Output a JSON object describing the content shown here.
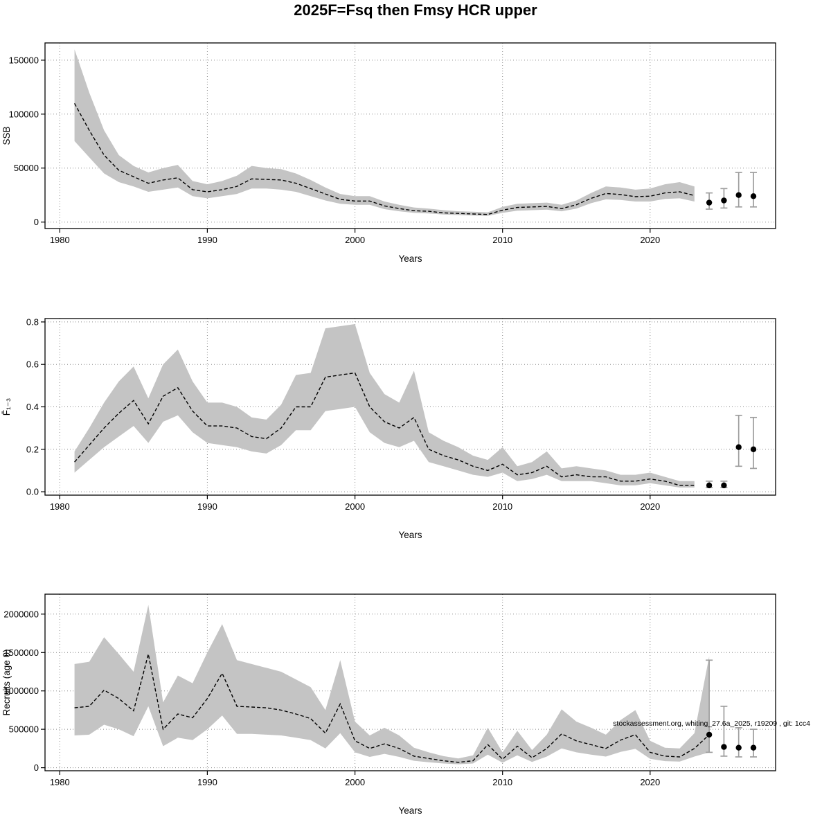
{
  "page": {
    "title": "2025F=Fsq then Fmsy HCR upper",
    "watermark": "stockassessment.org, whiting_27.6a_2025, r19209 , git: 1cc4"
  },
  "colors": {
    "band": "#c4c4c4",
    "line": "#000000",
    "errorbar": "#9e9e9e",
    "dot": "#000000",
    "grid": "#8a8a8a"
  },
  "chart_data": [
    {
      "type": "area",
      "name": "ssb-panel",
      "title": "",
      "xlabel": "Years",
      "ylabel": "SSB",
      "xlim": [
        1979,
        2028.5
      ],
      "ylim": [
        -6000,
        166000
      ],
      "xticks": [
        1980,
        1990,
        2000,
        2010,
        2020
      ],
      "xtick_labels": [
        "1980",
        "1990",
        "2000",
        "2010",
        "2020"
      ],
      "yticks": [
        0,
        50000,
        100000,
        150000
      ],
      "ytick_labels": [
        "0",
        "50000",
        "100000",
        "150000"
      ],
      "years": [
        1981,
        1982,
        1983,
        1984,
        1985,
        1986,
        1987,
        1988,
        1989,
        1990,
        1991,
        1992,
        1993,
        1994,
        1995,
        1996,
        1997,
        1998,
        1999,
        2000,
        2001,
        2002,
        2003,
        2004,
        2005,
        2006,
        2007,
        2008,
        2009,
        2010,
        2011,
        2012,
        2013,
        2014,
        2015,
        2016,
        2017,
        2018,
        2019,
        2020,
        2021,
        2022,
        2023
      ],
      "median": [
        110000,
        85000,
        62000,
        48000,
        42000,
        36000,
        39000,
        41000,
        30000,
        28000,
        30000,
        33000,
        40000,
        39500,
        39000,
        36000,
        31000,
        26000,
        21000,
        19500,
        19500,
        15000,
        12500,
        10500,
        10000,
        8500,
        8000,
        7500,
        7000,
        11000,
        13500,
        14000,
        14500,
        12500,
        16000,
        22000,
        26500,
        25500,
        23500,
        24000,
        27000,
        28000,
        24500
      ],
      "upper": [
        160000,
        120000,
        85000,
        62000,
        52000,
        46000,
        50000,
        53000,
        38000,
        35000,
        38000,
        43000,
        52000,
        50000,
        49000,
        45000,
        39000,
        32000,
        26000,
        24000,
        24000,
        19000,
        16000,
        13500,
        12500,
        11000,
        10000,
        9500,
        9000,
        14000,
        17000,
        17500,
        18000,
        16000,
        20000,
        27000,
        33000,
        32000,
        30000,
        31000,
        35000,
        37000,
        33000
      ],
      "lower": [
        75000,
        60000,
        45000,
        37000,
        33000,
        28000,
        30000,
        32000,
        24000,
        22000,
        24000,
        26000,
        31000,
        31000,
        30000,
        28000,
        24000,
        20000,
        17000,
        16000,
        16000,
        12000,
        10000,
        8500,
        8000,
        7000,
        6500,
        6000,
        5800,
        8500,
        10500,
        11000,
        11500,
        10000,
        12500,
        17500,
        21000,
        20500,
        19000,
        19000,
        21500,
        22000,
        19000
      ],
      "forecast": {
        "years": [
          2024,
          2025,
          2026,
          2027
        ],
        "values": [
          18000,
          20000,
          25000,
          24000
        ],
        "lo": [
          12000,
          13000,
          14000,
          14000
        ],
        "hi": [
          27000,
          31000,
          46000,
          46000
        ]
      }
    },
    {
      "type": "area",
      "name": "fbar-panel",
      "title": "",
      "xlabel": "Years",
      "ylabel": "F̄₁₋₃",
      "xlim": [
        1979,
        2028.5
      ],
      "ylim": [
        -0.016,
        0.816
      ],
      "xticks": [
        1980,
        1990,
        2000,
        2010,
        2020
      ],
      "xtick_labels": [
        "1980",
        "1990",
        "2000",
        "2010",
        "2020"
      ],
      "yticks": [
        0,
        0.2,
        0.4,
        0.6,
        0.8
      ],
      "ytick_labels": [
        "0.0",
        "0.2",
        "0.4",
        "0.6",
        "0.8"
      ],
      "years": [
        1981,
        1982,
        1983,
        1984,
        1985,
        1986,
        1987,
        1988,
        1989,
        1990,
        1991,
        1992,
        1993,
        1994,
        1995,
        1996,
        1997,
        1998,
        1999,
        2000,
        2001,
        2002,
        2003,
        2004,
        2005,
        2006,
        2007,
        2008,
        2009,
        2010,
        2011,
        2012,
        2013,
        2014,
        2015,
        2016,
        2017,
        2018,
        2019,
        2020,
        2021,
        2022,
        2023
      ],
      "median": [
        0.14,
        0.22,
        0.3,
        0.37,
        0.43,
        0.32,
        0.45,
        0.49,
        0.38,
        0.31,
        0.31,
        0.3,
        0.26,
        0.25,
        0.3,
        0.4,
        0.4,
        0.54,
        0.55,
        0.56,
        0.4,
        0.33,
        0.3,
        0.35,
        0.2,
        0.17,
        0.15,
        0.12,
        0.1,
        0.13,
        0.08,
        0.09,
        0.12,
        0.07,
        0.08,
        0.07,
        0.07,
        0.05,
        0.05,
        0.06,
        0.05,
        0.03,
        0.03
      ],
      "upper": [
        0.19,
        0.3,
        0.42,
        0.52,
        0.59,
        0.44,
        0.6,
        0.67,
        0.52,
        0.42,
        0.42,
        0.4,
        0.35,
        0.34,
        0.41,
        0.55,
        0.56,
        0.77,
        0.78,
        0.79,
        0.56,
        0.46,
        0.42,
        0.57,
        0.28,
        0.24,
        0.21,
        0.17,
        0.15,
        0.21,
        0.12,
        0.14,
        0.19,
        0.11,
        0.12,
        0.11,
        0.1,
        0.08,
        0.08,
        0.09,
        0.07,
        0.05,
        0.05
      ],
      "lower": [
        0.09,
        0.15,
        0.21,
        0.26,
        0.31,
        0.23,
        0.33,
        0.36,
        0.28,
        0.23,
        0.22,
        0.21,
        0.19,
        0.18,
        0.22,
        0.29,
        0.29,
        0.38,
        0.39,
        0.4,
        0.28,
        0.23,
        0.21,
        0.24,
        0.14,
        0.12,
        0.1,
        0.08,
        0.07,
        0.09,
        0.05,
        0.06,
        0.08,
        0.05,
        0.05,
        0.05,
        0.04,
        0.03,
        0.03,
        0.04,
        0.03,
        0.02,
        0.02
      ],
      "forecast": {
        "years": [
          2024,
          2025,
          2026,
          2027
        ],
        "values": [
          0.03,
          0.03,
          0.21,
          0.2
        ],
        "lo": [
          0.02,
          0.02,
          0.12,
          0.11
        ],
        "hi": [
          0.05,
          0.05,
          0.36,
          0.35
        ]
      }
    },
    {
      "type": "area",
      "name": "recruits-panel",
      "title": "",
      "xlabel": "Years",
      "ylabel": "Recruits (age 0)",
      "xlim": [
        1979,
        2028.5
      ],
      "ylim": [
        -40000,
        2260000
      ],
      "xticks": [
        1980,
        1990,
        2000,
        2010,
        2020
      ],
      "xtick_labels": [
        "1980",
        "1990",
        "2000",
        "2010",
        "2020"
      ],
      "yticks": [
        0,
        500000,
        1000000,
        1500000,
        2000000
      ],
      "ytick_labels": [
        "0",
        "500000",
        "1000000",
        "1500000",
        "2000000"
      ],
      "years": [
        1981,
        1982,
        1983,
        1984,
        1985,
        1986,
        1987,
        1988,
        1989,
        1990,
        1991,
        1992,
        1993,
        1994,
        1995,
        1996,
        1997,
        1998,
        1999,
        2000,
        2001,
        2002,
        2003,
        2004,
        2005,
        2006,
        2007,
        2008,
        2009,
        2010,
        2011,
        2012,
        2013,
        2014,
        2015,
        2016,
        2017,
        2018,
        2019,
        2020,
        2021,
        2022,
        2023,
        2024
      ],
      "median": [
        780000,
        800000,
        1010000,
        900000,
        740000,
        1480000,
        500000,
        700000,
        650000,
        900000,
        1230000,
        800000,
        790000,
        780000,
        750000,
        700000,
        640000,
        450000,
        830000,
        350000,
        250000,
        310000,
        250000,
        150000,
        120000,
        90000,
        70000,
        90000,
        300000,
        110000,
        280000,
        130000,
        250000,
        440000,
        350000,
        300000,
        250000,
        360000,
        430000,
        200000,
        150000,
        140000,
        250000,
        430000
      ],
      "upper": [
        1350000,
        1380000,
        1700000,
        1480000,
        1250000,
        2120000,
        850000,
        1200000,
        1100000,
        1500000,
        1870000,
        1400000,
        1350000,
        1300000,
        1250000,
        1150000,
        1050000,
        750000,
        1400000,
        600000,
        420000,
        520000,
        420000,
        260000,
        200000,
        150000,
        120000,
        160000,
        520000,
        200000,
        480000,
        230000,
        430000,
        760000,
        600000,
        520000,
        430000,
        620000,
        750000,
        350000,
        260000,
        250000,
        450000,
        1450000
      ],
      "lower": [
        420000,
        430000,
        560000,
        500000,
        410000,
        800000,
        280000,
        390000,
        360000,
        500000,
        680000,
        440000,
        440000,
        430000,
        420000,
        390000,
        360000,
        250000,
        450000,
        200000,
        140000,
        180000,
        140000,
        90000,
        70000,
        55000,
        45000,
        55000,
        170000,
        65000,
        160000,
        75000,
        145000,
        250000,
        200000,
        170000,
        145000,
        205000,
        245000,
        115000,
        85000,
        80000,
        145000,
        200000
      ],
      "forecast": {
        "years": [
          2024,
          2025,
          2026,
          2027
        ],
        "values": [
          430000,
          270000,
          260000,
          260000
        ],
        "lo": [
          200000,
          150000,
          140000,
          140000
        ],
        "hi": [
          1400000,
          800000,
          520000,
          500000
        ]
      }
    }
  ]
}
